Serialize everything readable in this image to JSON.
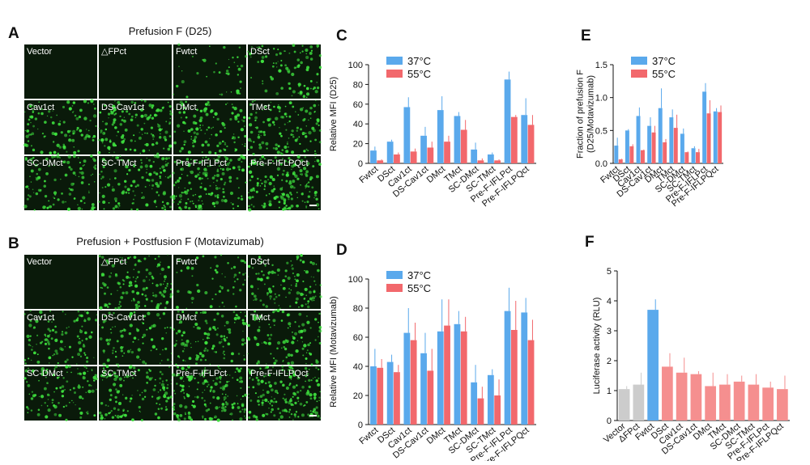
{
  "panels": [
    {
      "letter": "A",
      "title": "Prefusion F (D25)",
      "labels": [
        "Vector",
        "△FPct",
        "Fwtct",
        "DSct",
        "Cav1ct",
        "DS-Cav1ct",
        "DMct",
        "TMct",
        "SC-DMct",
        "SC-TMct",
        "Pre-F-IFLPct",
        "Pre-F-IFLPQct"
      ]
    },
    {
      "letter": "B",
      "title": "Prefusion + Postfusion F (Motavizumab)",
      "labels": [
        "Vector",
        "△FPct",
        "Fwtct",
        "DSct",
        "Cav1ct",
        "DS-Cav1ct",
        "DMct",
        "TMct",
        "SC-DMct",
        "SC-TMct",
        "Pre-F-IFLPct",
        "Pre-F-IFLPQct"
      ]
    }
  ],
  "chart_data": [
    {
      "type": "bar",
      "panel": "C",
      "ylabel": [
        "Relative MFI (D25)"
      ],
      "categories": [
        "Fwtct",
        "DSct",
        "Cav1ct",
        "DS-Cav1ct",
        "DMct",
        "TMct",
        "SC-DMct",
        "SC-TMct",
        "Pre-F-IFLPct",
        "Pre-F-IFLPQct"
      ],
      "series": [
        {
          "name": "37°C",
          "color": "#5aa9ec",
          "values": [
            13,
            22,
            57,
            28,
            54,
            48,
            14,
            9,
            85,
            49
          ],
          "errors": [
            4,
            2,
            10,
            9,
            14,
            4,
            7,
            2,
            8,
            17
          ]
        },
        {
          "name": "55°C",
          "color": "#f2686c",
          "values": [
            3,
            9,
            12,
            16,
            22,
            34,
            3,
            3,
            47,
            39
          ],
          "errors": [
            1,
            2,
            3,
            6,
            6,
            10,
            2,
            1,
            2,
            10
          ]
        }
      ],
      "ylim": [
        0,
        100
      ],
      "yticks": [
        0,
        20,
        40,
        60,
        80,
        100
      ],
      "legend": "top-left"
    },
    {
      "type": "bar",
      "panel": "D",
      "ylabel": [
        "Relative MFI (Motavizumab)"
      ],
      "categories": [
        "Fwtct",
        "DSct",
        "Cav1ct",
        "DS-Cav1ct",
        "DMct",
        "TMct",
        "SC-DMct",
        "SC-TMct",
        "Pre-F-IFLPct",
        "Pre-F-IFLPQct"
      ],
      "series": [
        {
          "name": "37°C",
          "color": "#5aa9ec",
          "values": [
            40,
            43,
            63,
            49,
            64,
            69,
            29,
            34,
            78,
            77
          ],
          "errors": [
            12,
            5,
            17,
            14,
            22,
            9,
            12,
            4,
            16,
            10
          ]
        },
        {
          "name": "55°C",
          "color": "#f2686c",
          "values": [
            39,
            36,
            58,
            37,
            68,
            64,
            18,
            20,
            65,
            58
          ],
          "errors": [
            6,
            5,
            12,
            15,
            18,
            10,
            8,
            11,
            20,
            14
          ]
        }
      ],
      "ylim": [
        0,
        100
      ],
      "yticks": [
        0,
        20,
        40,
        60,
        80,
        100
      ],
      "legend": "top-left"
    },
    {
      "type": "bar",
      "panel": "E",
      "ylabel": [
        "Fraction of prefusion F",
        "(D25/Motavizumab)"
      ],
      "categories": [
        "Fwtct",
        "DSct",
        "Cav1ct",
        "DS-Cav1ct",
        "DMct",
        "TMct",
        "SC-DMct",
        "SC-TMct",
        "Pre-F-IFLPct",
        "Pre-F-IFLPQct"
      ],
      "series": [
        {
          "name": "37°C",
          "color": "#5aa9ec",
          "values": [
            0.27,
            0.5,
            0.72,
            0.57,
            0.84,
            0.7,
            0.45,
            0.23,
            1.09,
            0.79
          ],
          "errors": [
            0.12,
            0.02,
            0.13,
            0.13,
            0.3,
            0.12,
            0.08,
            0.03,
            0.13,
            0.05
          ]
        },
        {
          "name": "55°C",
          "color": "#f2686c",
          "values": [
            0.06,
            0.26,
            0.2,
            0.47,
            0.32,
            0.54,
            0.17,
            0.17,
            0.76,
            0.78
          ],
          "errors": [
            0.01,
            0.03,
            0.01,
            0.1,
            0.05,
            0.2,
            0.01,
            0.05,
            0.2,
            0.1
          ]
        }
      ],
      "ylim": [
        0,
        1.5
      ],
      "yticks": [
        {
          "value": 0,
          "label": "0.0"
        },
        0.5,
        {
          "value": 1,
          "label": "1.0"
        },
        1.5
      ],
      "legend": "top-left"
    },
    {
      "type": "bar",
      "panel": "F",
      "ylabel": [
        "Luciferase activity (RLU)"
      ],
      "categories": [
        "Vector",
        "ΔFPct",
        "Fwtct",
        "DSct",
        "Cav1ct",
        "DS-Cav1ct",
        "DMct",
        "TMct",
        "SC-DMct",
        "SC-TMct",
        "Pre-F-IFLPct",
        "Pre-F-IFLPQct"
      ],
      "series": [
        {
          "colors": [
            "#cccccc",
            "#cccccc",
            "#5aa9ec",
            "#f58f8f",
            "#f58f8f",
            "#f58f8f",
            "#f58f8f",
            "#f58f8f",
            "#f58f8f",
            "#f58f8f",
            "#f58f8f",
            "#f58f8f"
          ],
          "values": [
            1.05,
            1.2,
            3.7,
            1.8,
            1.6,
            1.55,
            1.15,
            1.2,
            1.3,
            1.2,
            1.1,
            1.05
          ],
          "errors": [
            0.1,
            0.4,
            0.35,
            0.45,
            0.5,
            0.1,
            0.45,
            0.35,
            0.2,
            0.35,
            0.2,
            0.45
          ]
        }
      ],
      "ylim": [
        0,
        5
      ],
      "yticks": [
        0,
        1,
        2,
        3,
        4,
        5
      ]
    }
  ]
}
